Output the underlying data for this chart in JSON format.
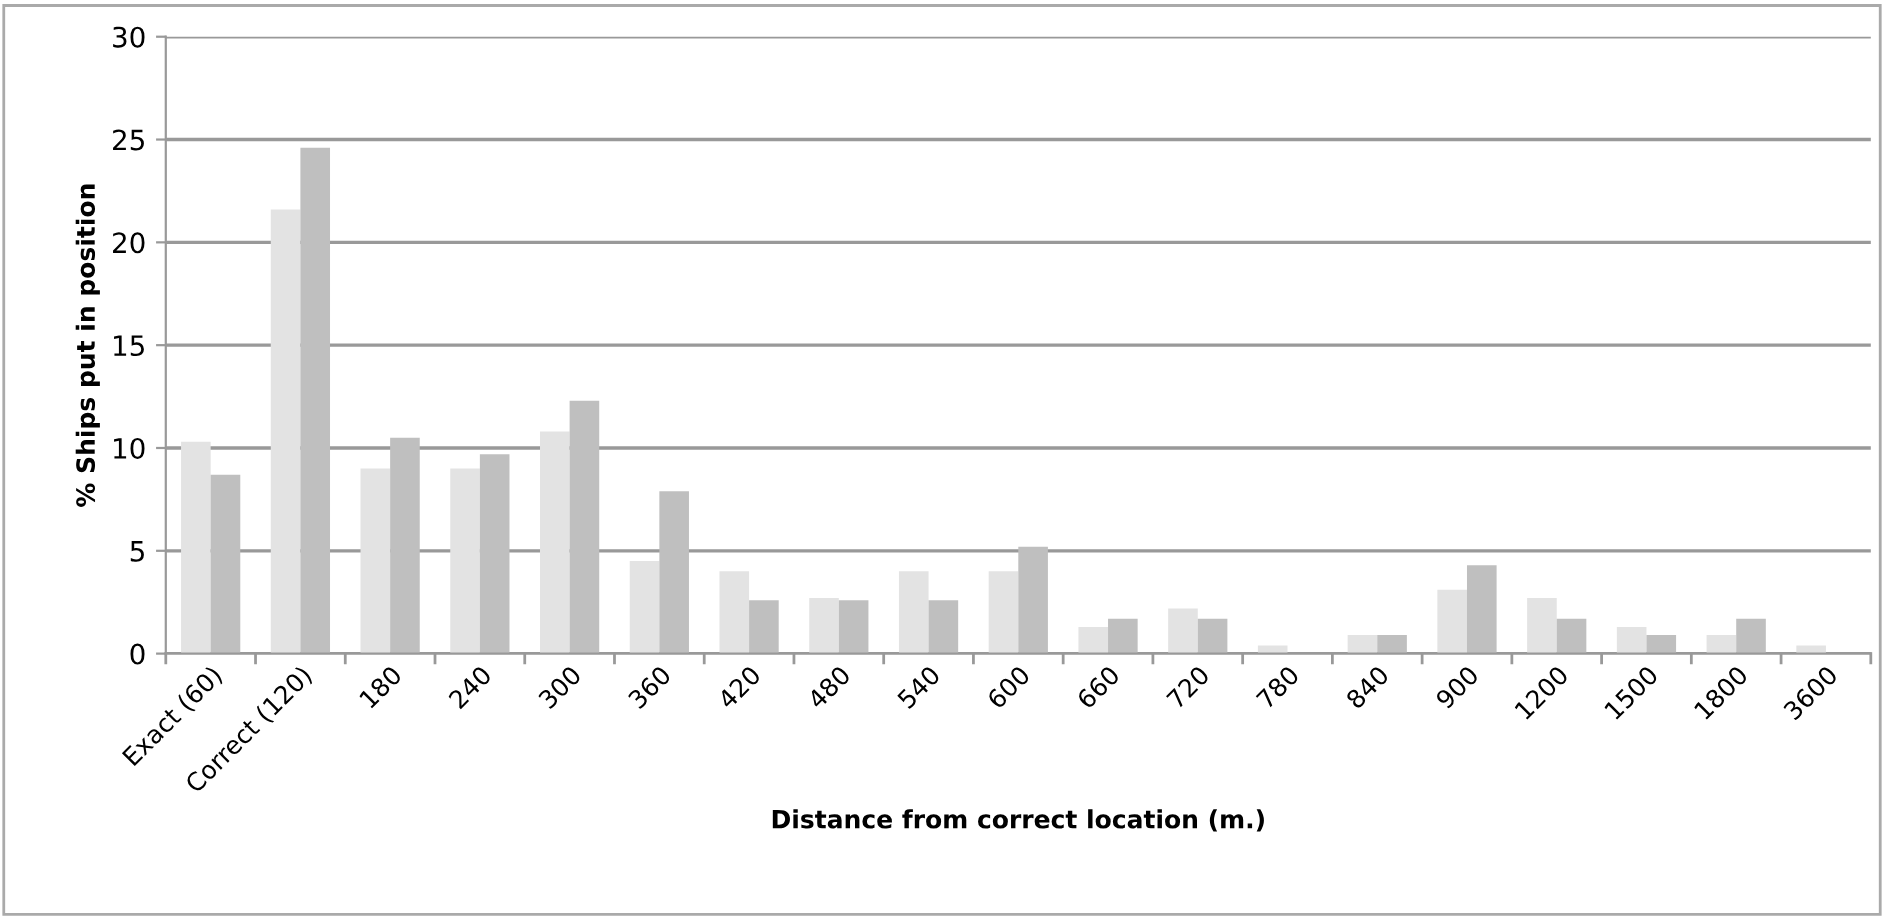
{
  "chart_data": {
    "type": "bar",
    "xlabel": "Distance from correct location (m.)",
    "ylabel": "% Ships put in position",
    "categories": [
      "Exact (60)",
      "Correct (120)",
      "180",
      "240",
      "300",
      "360",
      "420",
      "480",
      "540",
      "600",
      "660",
      "720",
      "780",
      "840",
      "900",
      "1200",
      "1500",
      "1800",
      "3600"
    ],
    "series": [
      {
        "color": "#e3e3e3",
        "values": [
          10.3,
          21.6,
          9.0,
          9.0,
          10.8,
          4.5,
          4.0,
          2.7,
          4.0,
          4.0,
          1.3,
          2.2,
          0.4,
          0.9,
          3.1,
          2.7,
          1.3,
          0.9,
          0.4
        ]
      },
      {
        "color": "#bfbfbf",
        "values": [
          8.7,
          24.6,
          10.5,
          9.7,
          12.3,
          7.9,
          2.6,
          2.6,
          2.6,
          5.2,
          1.7,
          1.7,
          0,
          0.9,
          4.3,
          1.7,
          0.9,
          1.7,
          0
        ]
      }
    ],
    "ylim": [
      0,
      30
    ],
    "yticks": [
      0,
      5,
      10,
      15,
      20,
      25,
      30
    ],
    "grid": "y"
  }
}
